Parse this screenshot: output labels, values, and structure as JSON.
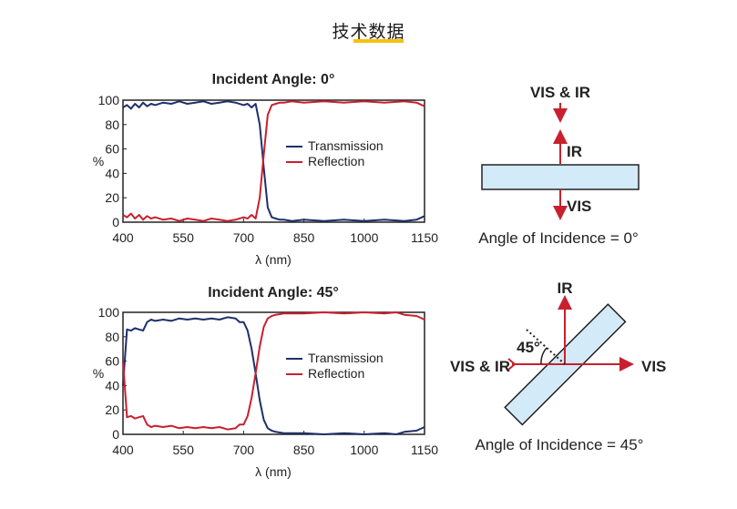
{
  "page": {
    "title": "技术数据"
  },
  "chart_data": [
    {
      "type": "line",
      "title": "Incident Angle: 0°",
      "xlabel": "λ (nm)",
      "ylabel": "%",
      "xlim": [
        400,
        1150
      ],
      "ylim": [
        0,
        100
      ],
      "xticks": [
        "400",
        "550",
        "700",
        "850",
        "1000",
        "1150"
      ],
      "xtick_values": [
        400,
        550,
        700,
        850,
        1000,
        1150
      ],
      "yticks": [
        "0",
        "20",
        "40",
        "60",
        "80",
        "100"
      ],
      "ytick_values": [
        0,
        20,
        40,
        60,
        80,
        100
      ],
      "legend_position": "center-right",
      "series": [
        {
          "name": "Transmission",
          "color": "#1f2f6b",
          "x": [
            400,
            410,
            420,
            430,
            440,
            450,
            460,
            470,
            480,
            500,
            520,
            540,
            560,
            580,
            600,
            620,
            640,
            660,
            680,
            700,
            710,
            720,
            730,
            740,
            750,
            760,
            770,
            780,
            790,
            800,
            820,
            850,
            900,
            950,
            1000,
            1050,
            1100,
            1130,
            1150
          ],
          "y": [
            94,
            96,
            93,
            97,
            94,
            98,
            95,
            97,
            96,
            98,
            97,
            99,
            97,
            98,
            99,
            97,
            98,
            99,
            98,
            96,
            97,
            94,
            97,
            80,
            45,
            12,
            4,
            3,
            2,
            2,
            1,
            2,
            1,
            2,
            1,
            2,
            1,
            2,
            5
          ]
        },
        {
          "name": "Reflection",
          "color": "#c8202f",
          "x": [
            400,
            410,
            420,
            430,
            440,
            450,
            460,
            470,
            480,
            500,
            520,
            540,
            560,
            580,
            600,
            620,
            640,
            660,
            680,
            700,
            710,
            720,
            730,
            740,
            750,
            760,
            770,
            780,
            790,
            800,
            820,
            850,
            900,
            950,
            1000,
            1050,
            1100,
            1130,
            1150
          ],
          "y": [
            6,
            4,
            7,
            3,
            6,
            2,
            5,
            3,
            4,
            2,
            3,
            1,
            3,
            2,
            1,
            3,
            2,
            1,
            2,
            4,
            3,
            6,
            3,
            20,
            55,
            88,
            96,
            97,
            98,
            98,
            99,
            98,
            99,
            98,
            99,
            98,
            99,
            98,
            95
          ]
        }
      ]
    },
    {
      "type": "line",
      "title": "Incident Angle: 45°",
      "xlabel": "λ (nm)",
      "ylabel": "%",
      "xlim": [
        400,
        1150
      ],
      "ylim": [
        0,
        100
      ],
      "xticks": [
        "400",
        "550",
        "700",
        "850",
        "1000",
        "1150"
      ],
      "xtick_values": [
        400,
        550,
        700,
        850,
        1000,
        1150
      ],
      "yticks": [
        "0",
        "20",
        "40",
        "60",
        "80",
        "100"
      ],
      "ytick_values": [
        0,
        20,
        40,
        60,
        80,
        100
      ],
      "legend_position": "center-right",
      "series": [
        {
          "name": "Transmission",
          "color": "#1f2f6b",
          "x": [
            400,
            410,
            420,
            430,
            440,
            450,
            460,
            470,
            480,
            500,
            520,
            540,
            560,
            580,
            600,
            620,
            640,
            660,
            680,
            690,
            700,
            710,
            720,
            730,
            740,
            750,
            760,
            770,
            780,
            800,
            850,
            900,
            950,
            1000,
            1050,
            1080,
            1100,
            1130,
            1150
          ],
          "y": [
            40,
            86,
            85,
            87,
            86,
            85,
            92,
            94,
            93,
            94,
            93,
            95,
            94,
            95,
            94,
            95,
            94,
            96,
            95,
            92,
            92,
            85,
            70,
            50,
            28,
            12,
            5,
            3,
            2,
            1,
            1,
            0,
            1,
            0,
            1,
            0,
            2,
            3,
            6
          ]
        },
        {
          "name": "Reflection",
          "color": "#c8202f",
          "x": [
            400,
            410,
            420,
            430,
            440,
            450,
            460,
            470,
            480,
            500,
            520,
            540,
            560,
            580,
            600,
            620,
            640,
            660,
            680,
            690,
            700,
            710,
            720,
            730,
            740,
            750,
            760,
            770,
            780,
            800,
            850,
            900,
            950,
            1000,
            1050,
            1080,
            1100,
            1130,
            1150
          ],
          "y": [
            60,
            14,
            15,
            13,
            14,
            15,
            8,
            6,
            7,
            6,
            7,
            5,
            6,
            5,
            6,
            5,
            6,
            4,
            5,
            8,
            8,
            15,
            30,
            50,
            72,
            88,
            95,
            97,
            98,
            99,
            99,
            100,
            99,
            100,
            99,
            100,
            98,
            97,
            94
          ]
        }
      ]
    }
  ],
  "diagram0": {
    "top_label": "VIS & IR",
    "reflect_label": "IR",
    "transmit_label": "VIS",
    "caption": "Angle of Incidence = 0°",
    "plate_fill": "#d3eaf8"
  },
  "diagram45": {
    "in_label": "VIS & IR",
    "reflect_label": "IR",
    "transmit_label": "VIS",
    "angle_label": "45°",
    "caption": "Angle of Incidence = 45°",
    "arrow_color": "#c8202f",
    "plate_fill": "#d3eaf8"
  }
}
